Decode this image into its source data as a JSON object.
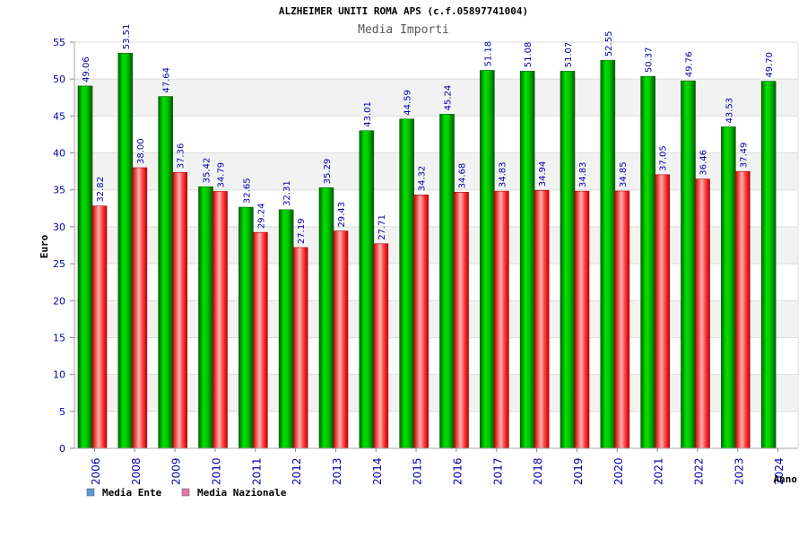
{
  "chart_data": {
    "type": "bar",
    "title": "ALZHEIMER UNITI ROMA APS (c.f.05897741004)",
    "subtitle": "Media Importi",
    "xlabel": "Anno",
    "ylabel": "Euro",
    "ylim": [
      0,
      55
    ],
    "ytick_step": 5,
    "grid": true,
    "legend_position": "bottom-left",
    "categories": [
      "2006",
      "2008",
      "2009",
      "2010",
      "2011",
      "2012",
      "2013",
      "2014",
      "2015",
      "2016",
      "2017",
      "2018",
      "2019",
      "2020",
      "2021",
      "2022",
      "2023",
      "2024"
    ],
    "series": [
      {
        "name": "Media Ente",
        "legend_color": "#5b9bd5",
        "bar_color": "#00b000",
        "values": [
          49.06,
          53.51,
          47.64,
          35.42,
          32.65,
          32.31,
          35.29,
          43.01,
          44.59,
          45.24,
          51.18,
          51.08,
          51.07,
          52.55,
          50.37,
          49.76,
          43.53,
          49.7
        ],
        "labels": [
          "49.06",
          "53.51",
          "47.64",
          "35.42",
          "32.65",
          "32.31",
          "35.29",
          "43.01",
          "44.59",
          "45.24",
          "51.18",
          "51.08",
          "51.07",
          "52.55",
          "50.37",
          "49.76",
          "43.53",
          "49.70"
        ]
      },
      {
        "name": "Media Nazionale",
        "legend_color": "#e07aa8",
        "bar_color": "#e00000",
        "values": [
          32.82,
          38.0,
          37.36,
          34.79,
          29.24,
          27.19,
          29.43,
          27.71,
          34.32,
          34.68,
          34.83,
          34.94,
          34.83,
          34.85,
          37.05,
          36.46,
          37.49,
          null
        ],
        "labels": [
          "32.82",
          "38.00",
          "37.36",
          "34.79",
          "29.24",
          "27.19",
          "29.43",
          "27.71",
          "34.32",
          "34.68",
          "34.83",
          "34.94",
          "34.83",
          "34.85",
          "37.05",
          "36.46",
          "37.49",
          ""
        ]
      }
    ]
  }
}
